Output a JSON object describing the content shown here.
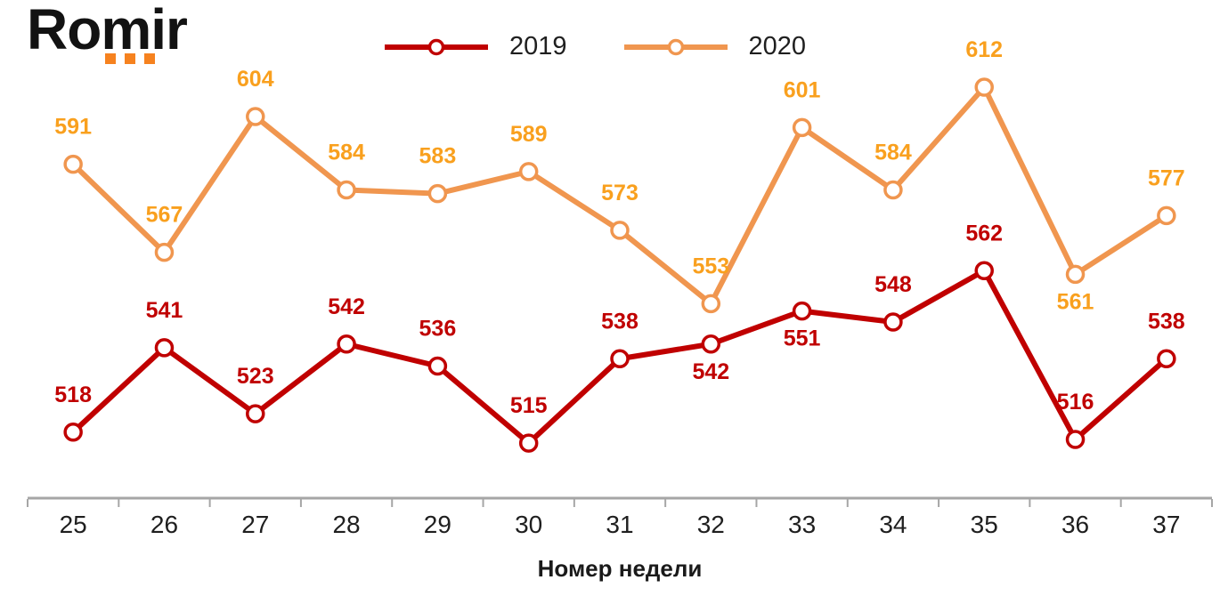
{
  "logo": {
    "text": "Romir",
    "dot_color": "#F6821F"
  },
  "chart_data": {
    "type": "line",
    "title": "",
    "xlabel": "Номер недели",
    "ylabel": "",
    "categories": [
      25,
      26,
      27,
      28,
      29,
      30,
      31,
      32,
      33,
      34,
      35,
      36,
      37
    ],
    "series": [
      {
        "name": "2020",
        "values": [
          591,
          567,
          604,
          584,
          583,
          589,
          573,
          553,
          601,
          584,
          612,
          561,
          577
        ],
        "color": "#F0964F",
        "label_color": "#F9A01E",
        "marker": "circle-open",
        "labels_below_categories": [
          36
        ]
      },
      {
        "name": "2019",
        "values": [
          518,
          541,
          523,
          542,
          536,
          515,
          538,
          542,
          551,
          548,
          562,
          516,
          538
        ],
        "color": "#C00000",
        "label_color": "#C00000",
        "marker": "circle-open",
        "labels_below_categories": [
          32,
          33
        ]
      }
    ],
    "legend": {
      "position": "top",
      "order": [
        "2019",
        "2020"
      ]
    },
    "grid": false,
    "y_axis_visible": false,
    "ylim": [
      500,
      620
    ],
    "axis_color": "#A6A6A6",
    "tick_label_color": "#1F1F1F",
    "data_labels_visible": true
  }
}
